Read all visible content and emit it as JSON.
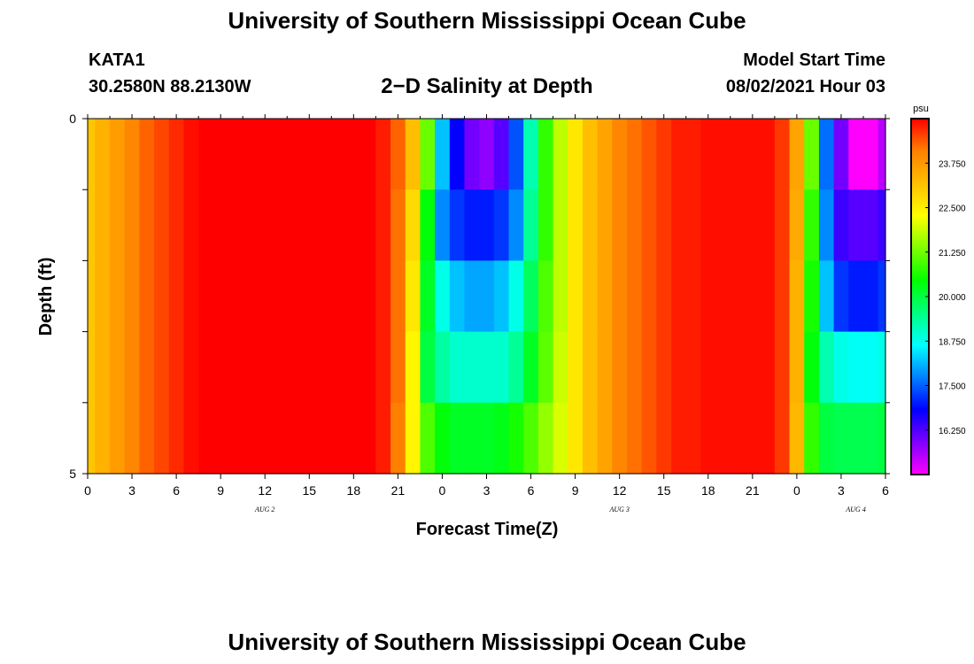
{
  "header": {
    "title": "University of Southern Mississippi Ocean Cube",
    "station": "KATA1",
    "coords": "30.2580N  88.2130W",
    "plot_title": "2−D Salinity at Depth",
    "model_label": "Model Start Time",
    "model_time": "08/02/2021 Hour 03"
  },
  "footer": {
    "title": "University of Southern Mississippi Ocean Cube"
  },
  "chart_data": {
    "type": "heatmap",
    "title": "2−D Salinity at Depth",
    "xlabel": "Forecast Time(Z)",
    "ylabel": "Depth (ft)",
    "x_tick_labels": [
      "0",
      "3",
      "6",
      "9",
      "12",
      "15",
      "18",
      "21",
      "0",
      "3",
      "6",
      "9",
      "12",
      "15",
      "18",
      "21",
      "0",
      "3",
      "6"
    ],
    "day_labels": [
      "AUG  2",
      "AUG  3",
      "AUG  4"
    ],
    "x_hours": [
      0,
      1,
      2,
      3,
      4,
      5,
      6,
      7,
      8,
      9,
      10,
      11,
      12,
      13,
      14,
      15,
      16,
      17,
      18,
      19,
      20,
      21,
      22,
      23,
      24,
      25,
      26,
      27,
      28,
      29,
      30,
      31,
      32,
      33,
      34,
      35,
      36,
      37,
      38,
      39,
      40,
      41,
      42,
      43,
      44,
      45,
      46,
      47,
      48,
      49,
      50,
      51,
      52,
      53,
      54
    ],
    "y_tick_labels": [
      "0",
      "5"
    ],
    "ylim": [
      0,
      5
    ],
    "depth_levels": [
      0,
      1,
      2,
      3,
      4,
      5
    ],
    "colorbar": {
      "unit": "psu",
      "range": [
        15.0,
        25.0
      ],
      "tick_labels": [
        "23.750",
        "22.500",
        "21.250",
        "20.000",
        "18.750",
        "17.500",
        "16.250"
      ],
      "colors": [
        "#ff00ff",
        "#8000ff",
        "#0000ff",
        "#0080ff",
        "#00ffff",
        "#00ff80",
        "#00ff00",
        "#80ff00",
        "#ffff00",
        "#ffc000",
        "#ff8000",
        "#ff0000"
      ]
    },
    "rows": [
      [
        23.1,
        23.4,
        23.7,
        24.0,
        24.3,
        24.5,
        24.7,
        24.9,
        25.0,
        25.0,
        25.0,
        25.0,
        25.0,
        25.0,
        25.0,
        25.0,
        25.0,
        25.0,
        25.0,
        25.0,
        24.8,
        24.3,
        23.2,
        21.2,
        18.2,
        16.8,
        16.0,
        15.8,
        16.2,
        17.4,
        19.2,
        20.8,
        21.8,
        22.6,
        23.2,
        23.6,
        24.0,
        24.2,
        24.4,
        24.6,
        24.8,
        24.8,
        24.9,
        24.9,
        24.9,
        24.9,
        24.9,
        24.6,
        23.6,
        21.2,
        17.6,
        16.0,
        15.0,
        15.0,
        15.5
      ],
      [
        23.1,
        23.4,
        23.7,
        24.0,
        24.3,
        24.5,
        24.7,
        24.9,
        25.0,
        25.0,
        25.0,
        25.0,
        25.0,
        25.0,
        25.0,
        25.0,
        25.0,
        25.0,
        25.0,
        25.0,
        24.8,
        24.2,
        22.8,
        20.4,
        17.8,
        17.2,
        17.0,
        17.0,
        17.2,
        17.8,
        19.4,
        20.8,
        21.8,
        22.6,
        23.2,
        23.6,
        24.0,
        24.2,
        24.4,
        24.6,
        24.8,
        24.8,
        24.9,
        24.9,
        24.9,
        24.9,
        24.9,
        24.6,
        23.5,
        20.8,
        17.8,
        16.4,
        16.2,
        16.2,
        16.4
      ],
      [
        23.1,
        23.4,
        23.7,
        24.0,
        24.3,
        24.5,
        24.7,
        24.9,
        25.0,
        25.0,
        25.0,
        25.0,
        25.0,
        25.0,
        25.0,
        25.0,
        25.0,
        25.0,
        25.0,
        25.0,
        24.8,
        24.2,
        22.6,
        20.2,
        18.8,
        18.2,
        18.0,
        18.0,
        18.2,
        18.8,
        19.8,
        21.0,
        21.8,
        22.6,
        23.2,
        23.6,
        24.0,
        24.2,
        24.4,
        24.6,
        24.8,
        24.8,
        24.9,
        24.9,
        24.9,
        24.9,
        24.9,
        24.6,
        23.4,
        20.6,
        18.2,
        17.2,
        17.0,
        17.0,
        17.2
      ],
      [
        23.1,
        23.4,
        23.7,
        24.0,
        24.3,
        24.5,
        24.7,
        24.9,
        25.0,
        25.0,
        25.0,
        25.0,
        25.0,
        25.0,
        25.0,
        25.0,
        25.0,
        25.0,
        25.0,
        25.0,
        24.8,
        24.2,
        22.4,
        20.0,
        19.3,
        19.0,
        19.0,
        19.0,
        19.0,
        19.4,
        20.2,
        21.1,
        21.9,
        22.6,
        23.2,
        23.6,
        24.0,
        24.2,
        24.4,
        24.6,
        24.8,
        24.8,
        24.9,
        24.9,
        24.9,
        24.9,
        24.9,
        24.6,
        23.4,
        20.4,
        19.2,
        18.8,
        18.7,
        18.7,
        18.8
      ],
      [
        23.1,
        23.4,
        23.7,
        24.0,
        24.3,
        24.5,
        24.7,
        24.9,
        25.0,
        25.0,
        25.0,
        25.0,
        25.0,
        25.0,
        25.0,
        25.0,
        25.0,
        25.0,
        25.0,
        25.0,
        24.8,
        24.1,
        22.4,
        21.0,
        20.4,
        20.2,
        20.2,
        20.2,
        20.3,
        20.6,
        21.0,
        21.5,
        22.0,
        22.6,
        23.2,
        23.6,
        24.0,
        24.2,
        24.4,
        24.6,
        24.8,
        24.8,
        24.9,
        24.9,
        24.9,
        24.9,
        24.9,
        24.6,
        23.3,
        20.8,
        20.0,
        19.9,
        19.9,
        19.9,
        20.0
      ]
    ]
  }
}
